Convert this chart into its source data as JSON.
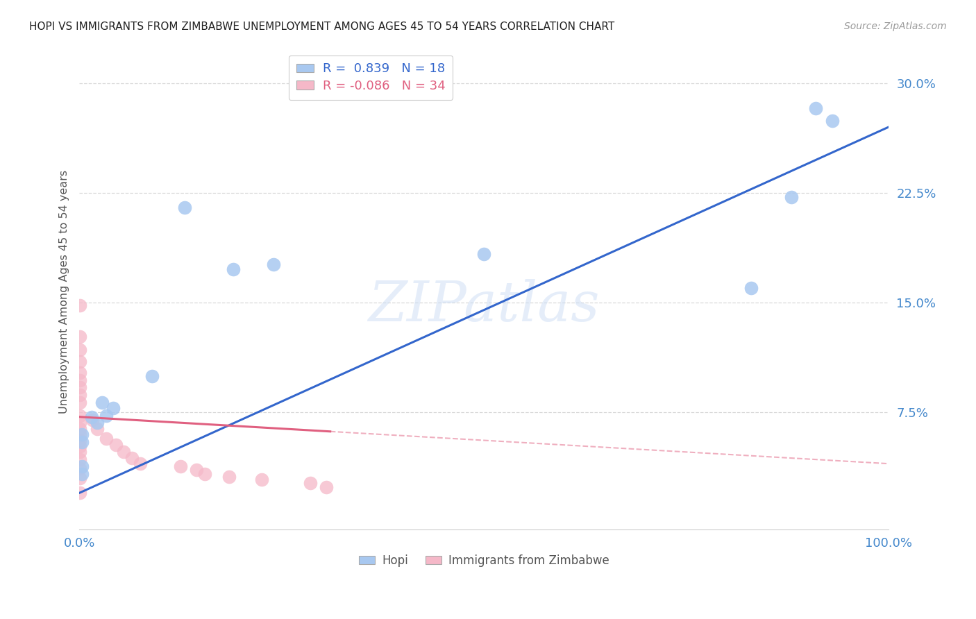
{
  "title": "HOPI VS IMMIGRANTS FROM ZIMBABWE UNEMPLOYMENT AMONG AGES 45 TO 54 YEARS CORRELATION CHART",
  "source": "Source: ZipAtlas.com",
  "ylabel_label": "Unemployment Among Ages 45 to 54 years",
  "legend_entries": [
    {
      "label": "R =  0.839   N = 18",
      "color": "#a8c8f0"
    },
    {
      "label": "R = -0.086   N = 34",
      "color": "#f5b8c8"
    }
  ],
  "hopi_color": "#a8c8f0",
  "zimbabwe_color": "#f5b8c8",
  "hopi_line_color": "#3366cc",
  "zimbabwe_line_color": "#e06080",
  "watermark": "ZIPatlas",
  "hopi_scatter": [
    [
      0.003,
      0.06
    ],
    [
      0.003,
      0.055
    ],
    [
      0.003,
      0.038
    ],
    [
      0.003,
      0.033
    ],
    [
      0.015,
      0.072
    ],
    [
      0.022,
      0.068
    ],
    [
      0.028,
      0.082
    ],
    [
      0.033,
      0.073
    ],
    [
      0.042,
      0.078
    ],
    [
      0.09,
      0.1
    ],
    [
      0.13,
      0.215
    ],
    [
      0.19,
      0.173
    ],
    [
      0.24,
      0.176
    ],
    [
      0.5,
      0.183
    ],
    [
      0.83,
      0.16
    ],
    [
      0.88,
      0.222
    ],
    [
      0.91,
      0.283
    ],
    [
      0.93,
      0.274
    ]
  ],
  "zimbabwe_scatter": [
    [
      0.001,
      0.148
    ],
    [
      0.001,
      0.127
    ],
    [
      0.001,
      0.118
    ],
    [
      0.001,
      0.11
    ],
    [
      0.001,
      0.102
    ],
    [
      0.001,
      0.097
    ],
    [
      0.001,
      0.092
    ],
    [
      0.001,
      0.087
    ],
    [
      0.001,
      0.082
    ],
    [
      0.001,
      0.073
    ],
    [
      0.001,
      0.068
    ],
    [
      0.001,
      0.064
    ],
    [
      0.001,
      0.06
    ],
    [
      0.001,
      0.056
    ],
    [
      0.001,
      0.052
    ],
    [
      0.001,
      0.048
    ],
    [
      0.001,
      0.043
    ],
    [
      0.001,
      0.037
    ],
    [
      0.001,
      0.03
    ],
    [
      0.001,
      0.02
    ],
    [
      0.016,
      0.07
    ],
    [
      0.022,
      0.064
    ],
    [
      0.033,
      0.057
    ],
    [
      0.045,
      0.053
    ],
    [
      0.055,
      0.048
    ],
    [
      0.065,
      0.044
    ],
    [
      0.075,
      0.04
    ],
    [
      0.125,
      0.038
    ],
    [
      0.145,
      0.036
    ],
    [
      0.155,
      0.033
    ],
    [
      0.185,
      0.031
    ],
    [
      0.225,
      0.029
    ],
    [
      0.285,
      0.027
    ],
    [
      0.305,
      0.024
    ]
  ],
  "hopi_line": {
    "x0": 0.0,
    "x1": 1.0,
    "y0": 0.02,
    "y1": 0.27
  },
  "zimbabwe_line_solid": {
    "x0": 0.0,
    "x1": 0.31,
    "y0": 0.072,
    "y1": 0.062
  },
  "zimbabwe_line_dash": {
    "x0": 0.31,
    "x1": 1.0,
    "y0": 0.062,
    "y1": 0.04
  },
  "background_color": "#ffffff",
  "grid_color": "#d8d8d8",
  "xlim": [
    0.0,
    1.0
  ],
  "ylim": [
    -0.005,
    0.32
  ],
  "yticks": [
    0.075,
    0.15,
    0.225,
    0.3
  ],
  "xticks": [
    0.0,
    1.0
  ],
  "tick_color": "#4488cc",
  "title_fontsize": 11,
  "source_fontsize": 10
}
